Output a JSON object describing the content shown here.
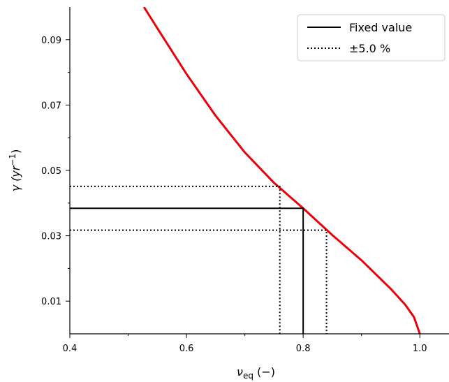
{
  "chart_data": {
    "type": "line",
    "xlabel": {
      "main": "ν",
      "sub": "eq",
      "tail": " (−)"
    },
    "ylabel": {
      "main": "γ (yr",
      "sup": "−1",
      "tail": ")"
    },
    "xlim": [
      0.4,
      1.05
    ],
    "ylim": [
      0.0,
      0.1
    ],
    "xticks": [
      0.4,
      0.6,
      0.8,
      1.0
    ],
    "xtick_labels": [
      "0.4",
      "0.6",
      "0.8",
      "1.0"
    ],
    "yticks": [
      0.01,
      0.03,
      0.05,
      0.07,
      0.09
    ],
    "ytick_labels": [
      "0.01",
      "0.03",
      "0.05",
      "0.07",
      "0.09"
    ],
    "minor_xticks": [
      0.5,
      0.7,
      0.9
    ],
    "minor_yticks": [
      0.02,
      0.04,
      0.06,
      0.08
    ],
    "grid": false,
    "legend_position": "top-right",
    "series": [
      {
        "color": "#e8000b",
        "x": [
          0.527,
          0.55,
          0.6,
          0.65,
          0.7,
          0.75,
          0.8,
          0.85,
          0.9,
          0.95,
          0.975,
          0.99,
          1.0
        ],
        "y": [
          0.1,
          0.0935,
          0.0795,
          0.0667,
          0.0555,
          0.0462,
          0.0384,
          0.0302,
          0.0225,
          0.0138,
          0.0089,
          0.0051,
          0.0
        ]
      },
      {
        "name": "Fixed value",
        "color": "#000000",
        "style": "solid",
        "x": [
          0.4,
          0.8,
          0.8
        ],
        "y": [
          0.0384,
          0.0384,
          0.0
        ]
      },
      {
        "name": "±5.0 %",
        "color": "#000000",
        "style": "dotted",
        "x": [
          0.4,
          0.76,
          0.76
        ],
        "y": [
          0.0451,
          0.0451,
          0.0
        ]
      },
      {
        "color": "#000000",
        "style": "dotted",
        "x": [
          0.4,
          0.84,
          0.84
        ],
        "y": [
          0.0317,
          0.0317,
          0.0
        ]
      }
    ]
  }
}
